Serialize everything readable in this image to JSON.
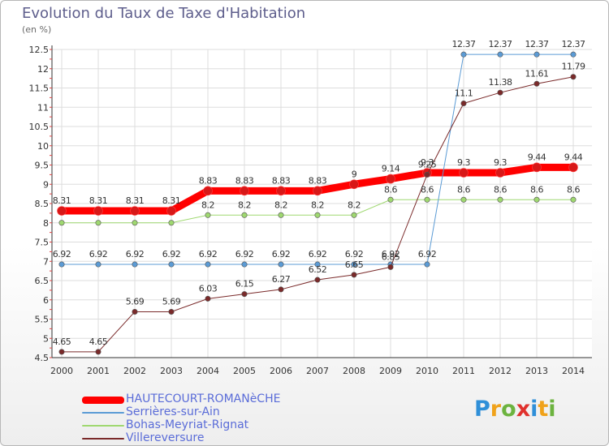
{
  "header": {
    "title": "Evolution du Taux de Taxe d'Habitation",
    "subtitle": "(en %)"
  },
  "logo": {
    "text": "Proxiti",
    "letters": [
      {
        "char": "P",
        "color": "#2f8fd8"
      },
      {
        "char": "r",
        "color": "#f0a21a"
      },
      {
        "char": "o",
        "color": "#6cb33f"
      },
      {
        "char": "x",
        "color": "#e0312d"
      },
      {
        "char": "i",
        "color": "#2f8fd8"
      },
      {
        "char": "t",
        "color": "#f0a21a"
      },
      {
        "char": "i",
        "color": "#6cb33f"
      }
    ]
  },
  "chart_data": {
    "type": "line",
    "title": "Evolution du Taux de Taxe d'Habitation",
    "subtitle": "(en %)",
    "xlabel": "",
    "ylabel": "",
    "x": [
      "2000",
      "2001",
      "2002",
      "2003",
      "2004",
      "2005",
      "2006",
      "2007",
      "2008",
      "2009",
      "2010",
      "2011",
      "2012",
      "2013",
      "2014"
    ],
    "ylim": [
      4.5,
      12.5
    ],
    "yticks": [
      "4.5",
      "5",
      "5.5",
      "6",
      "6.5",
      "7",
      "7.5",
      "8",
      "8.5",
      "9",
      "9.5",
      "10",
      "10.5",
      "11",
      "11.5",
      "12",
      "12.5"
    ],
    "grid": true,
    "legend_position": "bottom-left",
    "series": [
      {
        "name": "HAUTECOURT-ROMANèCHE",
        "color": "#ff0000",
        "width": 9,
        "values": [
          8.31,
          8.31,
          8.31,
          8.31,
          8.83,
          8.83,
          8.83,
          8.83,
          9,
          9.14,
          9.3,
          9.3,
          9.3,
          9.44,
          9.44
        ],
        "labels": [
          "8.31",
          "8.31",
          "8.31",
          "8.31",
          "8.83",
          "8.83",
          "8.83",
          "8.83",
          "9",
          "9.14",
          "9.3",
          "9.3",
          "9.3",
          "9.44",
          "9.44"
        ]
      },
      {
        "name": "Serrières-sur-Ain",
        "color": "#5b9bd5",
        "width": 1,
        "values": [
          6.92,
          6.92,
          6.92,
          6.92,
          6.92,
          6.92,
          6.92,
          6.92,
          6.92,
          6.92,
          6.92,
          12.37,
          12.37,
          12.37,
          12.37
        ],
        "labels": [
          "6.92",
          "6.92",
          "6.92",
          "6.92",
          "6.92",
          "6.92",
          "6.92",
          "6.92",
          "6.92",
          "6.92",
          "6.92",
          "12.37",
          "12.37",
          "12.37",
          "12.37"
        ]
      },
      {
        "name": "Bohas-Meyriat-Rignat",
        "color": "#9fd870",
        "width": 1,
        "values": [
          8,
          8,
          8,
          8,
          8.2,
          8.2,
          8.2,
          8.2,
          8.2,
          8.6,
          8.6,
          8.6,
          8.6,
          8.6,
          8.6
        ],
        "labels": [
          "",
          "",
          "",
          "",
          "8.2",
          "8.2",
          "8.2",
          "8.2",
          "8.2",
          "8.6",
          "8.6",
          "8.6",
          "8.6",
          "8.6",
          "8.6"
        ]
      },
      {
        "name": "Villereversure",
        "color": "#7a2a2a",
        "width": 1,
        "values": [
          4.65,
          4.65,
          5.69,
          5.69,
          6.03,
          6.15,
          6.27,
          6.52,
          6.65,
          6.85,
          9.25,
          11.1,
          11.38,
          11.61,
          11.79
        ],
        "labels": [
          "4.65",
          "4.65",
          "5.69",
          "5.69",
          "6.03",
          "6.15",
          "6.27",
          "6.52",
          "6.65",
          "6.85",
          "9.25",
          "11.1",
          "11.38",
          "11.61",
          "11.79"
        ]
      }
    ]
  }
}
